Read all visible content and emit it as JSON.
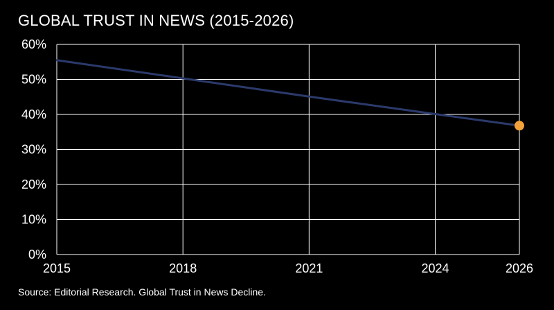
{
  "title": "GLOBAL TRUST IN NEWS (2015-2026)",
  "source": "Source: Editorial Research. Global Trust in News Decline.",
  "colors": {
    "background": "#000000",
    "grid": "#ffffff",
    "line": "#2b3a6b",
    "marker": "#f2a23a",
    "text": "#ffffff"
  },
  "chart_data": {
    "type": "line",
    "title": "GLOBAL TRUST IN NEWS (2015-2026)",
    "xlabel": "",
    "ylabel": "",
    "xlim": [
      2015,
      2026
    ],
    "ylim": [
      0,
      60
    ],
    "x_ticks": [
      2015,
      2018,
      2021,
      2024,
      2026
    ],
    "x_tick_labels": [
      "2015",
      "2018",
      "2021",
      "2024",
      "2026"
    ],
    "y_ticks": [
      0,
      10,
      20,
      30,
      40,
      50,
      60
    ],
    "y_tick_labels": [
      "0%",
      "10%",
      "20%",
      "30%",
      "40%",
      "50%",
      "60%"
    ],
    "grid": true,
    "series": [
      {
        "x": [
          2015,
          2018,
          2021,
          2024,
          2026
        ],
        "values": [
          55.5,
          50.3,
          45.1,
          40.1,
          36.8
        ]
      }
    ],
    "highlight_point": {
      "x": 2026,
      "y": 36.8
    }
  }
}
